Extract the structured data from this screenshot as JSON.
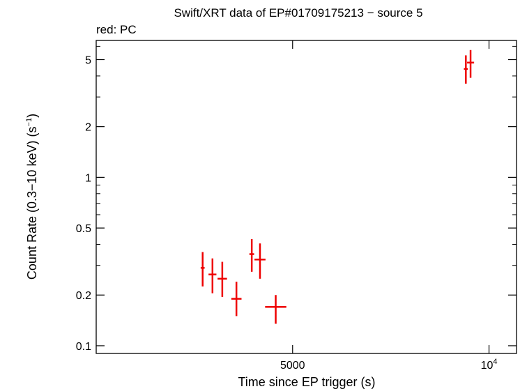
{
  "chart_data": {
    "type": "scatter",
    "title": "Swift/XRT data of EP#01709175213 − source 5",
    "subtitle": "red: PC",
    "xlabel": "Time since EP trigger (s)",
    "ylabel_main": "Count Rate (0.3−10 keV) (s",
    "ylabel_sup": "−1",
    "ylabel_end": ")",
    "x_scale": "linear",
    "y_scale": "log",
    "xlim": [
      0,
      10700
    ],
    "ylim": [
      0.09,
      6.5
    ],
    "x_ticks": [
      {
        "value": 5000,
        "label": "5000",
        "sup": ""
      },
      {
        "value": 10000,
        "label": "10",
        "sup": "4"
      }
    ],
    "y_ticks": [
      {
        "value": 0.1,
        "label": "0.1"
      },
      {
        "value": 0.2,
        "label": "0.2"
      },
      {
        "value": 0.5,
        "label": "0.5"
      },
      {
        "value": 1,
        "label": "1"
      },
      {
        "value": 2,
        "label": "2"
      },
      {
        "value": 5,
        "label": "5"
      }
    ],
    "series_color": "#ee0000",
    "points": [
      {
        "x": 2710,
        "xerr": 50,
        "y": 0.29,
        "ylo": 0.225,
        "yhi": 0.36
      },
      {
        "x": 2960,
        "xerr": 100,
        "y": 0.265,
        "ylo": 0.205,
        "yhi": 0.33
      },
      {
        "x": 3210,
        "xerr": 120,
        "y": 0.25,
        "ylo": 0.195,
        "yhi": 0.315
      },
      {
        "x": 3570,
        "xerr": 130,
        "y": 0.19,
        "ylo": 0.15,
        "yhi": 0.24
      },
      {
        "x": 3960,
        "xerr": 60,
        "y": 0.35,
        "ylo": 0.275,
        "yhi": 0.43
      },
      {
        "x": 4170,
        "xerr": 140,
        "y": 0.325,
        "ylo": 0.25,
        "yhi": 0.405
      },
      {
        "x": 4570,
        "xerr": 270,
        "y": 0.17,
        "ylo": 0.135,
        "yhi": 0.2
      },
      {
        "x": 9410,
        "xerr": 50,
        "y": 4.4,
        "ylo": 3.6,
        "yhi": 5.3
      },
      {
        "x": 9530,
        "xerr": 90,
        "y": 4.8,
        "ylo": 3.9,
        "yhi": 5.7
      }
    ]
  }
}
